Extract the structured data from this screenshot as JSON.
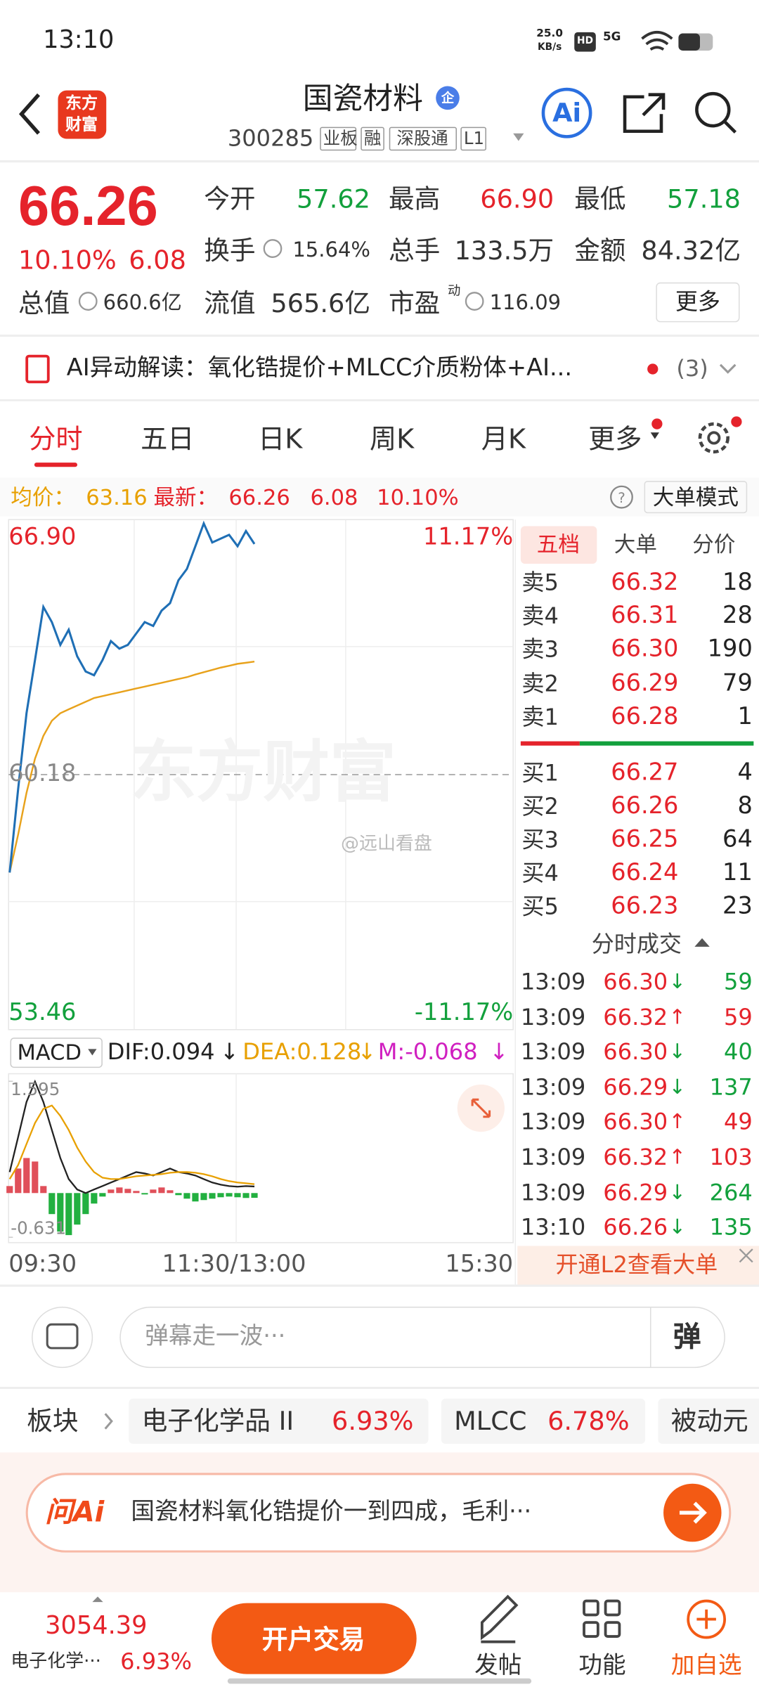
{
  "status_bar": {
    "time": "13:10",
    "speed": "25.0",
    "speed_unit": "KB/s",
    "hd": "HD",
    "network": "5G"
  },
  "header": {
    "logo": [
      "东方",
      "财富"
    ],
    "name": "国瓷材料",
    "badge": "企",
    "code": "300285",
    "tags": [
      "业板",
      "融",
      "深股通",
      "L1"
    ],
    "ai": "Ai"
  },
  "quote": {
    "price": "66.26",
    "change_pct": "10.10%",
    "change": "6.08",
    "fields": [
      {
        "label": "今开",
        "value": "57.62",
        "color": "#12a03c"
      },
      {
        "label": "最高",
        "value": "66.90",
        "color": "#e5232b"
      },
      {
        "label": "最低",
        "value": "57.18",
        "color": "#12a03c"
      },
      {
        "label": "换手",
        "value": "15.64%",
        "color": "#333333"
      },
      {
        "label": "总手",
        "value": "133.5万",
        "color": "#333333"
      },
      {
        "label": "金额",
        "value": "84.32亿",
        "color": "#333333"
      },
      {
        "label": "总值",
        "value": "660.6亿",
        "color": "#333333"
      },
      {
        "label": "流值",
        "value": "565.6亿",
        "color": "#333333"
      },
      {
        "label": "市盈",
        "value": "116.09",
        "color": "#333333"
      }
    ],
    "pe_sup": "动",
    "more_button": "更多"
  },
  "ai_banner": {
    "text": "AI异动解读：氧化锆提价+MLCC介质粉体+AI...",
    "count": "(3)"
  },
  "tabs": [
    "分时",
    "五日",
    "日K",
    "周K",
    "月K",
    "更多"
  ],
  "info_line": {
    "avg_label": "均价：",
    "avg": "63.16",
    "latest_label": "最新：",
    "latest": "66.26",
    "change": "6.08",
    "pct": "10.10%",
    "mode": "大单模式"
  },
  "chart": {
    "type": "line",
    "ylim": [
      53.46,
      66.9
    ],
    "yticks": [
      {
        "value": 66.9,
        "label": "66.90"
      },
      60.18,
      53.46
    ],
    "y2lim": [
      -11.17,
      11.17
    ],
    "y2ticks": [
      {
        "value": 11.17,
        "label": "11.17%"
      },
      {
        "value": -11.17,
        "label": "-11.17%"
      }
    ],
    "price_color": "#1f6fb5",
    "avg_color": "#e8a21c",
    "price": [
      57.6,
      59.8,
      61.8,
      63.2,
      64.6,
      64.2,
      63.6,
      64.0,
      63.3,
      62.9,
      62.8,
      63.2,
      63.7,
      63.5,
      63.6,
      63.9,
      64.2,
      64.1,
      64.5,
      64.7,
      65.3,
      65.6,
      66.2,
      66.8,
      66.3,
      66.4,
      66.5,
      66.2,
      66.6,
      66.26
    ],
    "avg": [
      57.6,
      58.6,
      59.7,
      60.6,
      61.2,
      61.6,
      61.8,
      61.9,
      62.0,
      62.1,
      62.2,
      62.25,
      62.3,
      62.35,
      62.4,
      62.45,
      62.5,
      62.55,
      62.6,
      62.65,
      62.7,
      62.75,
      62.82,
      62.88,
      62.94,
      63.0,
      63.05,
      63.1,
      63.13,
      63.16
    ],
    "x_labels": [
      "09:30",
      "11:30/13:00",
      "15:30"
    ],
    "watermark": "东方财富",
    "credit": "@远山看盘"
  },
  "macd": {
    "title": "MACD",
    "dif_label": "DIF:0.094",
    "dea_label": "DEA:0.128",
    "m_label": "M:-0.068",
    "arrows": [
      "↓",
      "↓",
      "↓"
    ],
    "ylim": [
      -0.631,
      1.595
    ],
    "yticks": [
      1.595,
      -0.631
    ],
    "dif": [
      0.3,
      0.8,
      1.3,
      1.59,
      1.3,
      0.9,
      0.5,
      0.2,
      0.05,
      0.0,
      0.05,
      0.1,
      0.15,
      0.2,
      0.25,
      0.3,
      0.28,
      0.25,
      0.3,
      0.35,
      0.3,
      0.28,
      0.25,
      0.2,
      0.15,
      0.12,
      0.1,
      0.09,
      0.1,
      0.094
    ],
    "dea": [
      0.2,
      0.4,
      0.7,
      1.0,
      1.2,
      1.25,
      1.1,
      0.9,
      0.65,
      0.45,
      0.3,
      0.22,
      0.2,
      0.2,
      0.22,
      0.24,
      0.25,
      0.26,
      0.27,
      0.29,
      0.3,
      0.3,
      0.29,
      0.27,
      0.24,
      0.2,
      0.17,
      0.15,
      0.14,
      0.128
    ],
    "m": [
      0.1,
      0.35,
      0.5,
      0.45,
      0.1,
      -0.3,
      -0.55,
      -0.6,
      -0.45,
      -0.3,
      -0.15,
      -0.05,
      0.05,
      0.08,
      0.06,
      0.03,
      -0.02,
      0.05,
      0.08,
      0.04,
      -0.03,
      -0.08,
      -0.12,
      -0.1,
      -0.08,
      -0.06,
      -0.05,
      -0.06,
      -0.07,
      -0.068
    ]
  },
  "order_book": {
    "tabs": [
      "五档",
      "大单",
      "分价"
    ],
    "sells": [
      [
        "卖5",
        "66.32",
        "18"
      ],
      [
        "卖4",
        "66.31",
        "28"
      ],
      [
        "卖3",
        "66.30",
        "190"
      ],
      [
        "卖2",
        "66.29",
        "79"
      ],
      [
        "卖1",
        "66.28",
        "1"
      ]
    ],
    "buys": [
      [
        "买1",
        "66.27",
        "4"
      ],
      [
        "买2",
        "66.26",
        "8"
      ],
      [
        "买3",
        "66.25",
        "64"
      ],
      [
        "买4",
        "66.24",
        "11"
      ],
      [
        "买5",
        "66.23",
        "23"
      ]
    ]
  },
  "trades": {
    "title": "分时成交",
    "rows": [
      [
        "13:09",
        "66.30",
        "↓",
        "59"
      ],
      [
        "13:09",
        "66.32",
        "↑",
        "59"
      ],
      [
        "13:09",
        "66.30",
        "↓",
        "40"
      ],
      [
        "13:09",
        "66.29",
        "↓",
        "137"
      ],
      [
        "13:09",
        "66.30",
        "↑",
        "49"
      ],
      [
        "13:09",
        "66.32",
        "↑",
        "103"
      ],
      [
        "13:09",
        "66.29",
        "↓",
        "264"
      ],
      [
        "13:10",
        "66.26",
        "↓",
        "135"
      ]
    ],
    "l2_banner": "开通L2查看大单"
  },
  "comment": {
    "placeholder": "弹幕走一波···",
    "button": "弹"
  },
  "sectors": {
    "label": "板块",
    "items": [
      {
        "name": "电子化学品 II",
        "pct": "6.93%"
      },
      {
        "name": "MLCC",
        "pct": "6.78%"
      },
      {
        "name": "被动元"
      }
    ]
  },
  "ask_ai": {
    "logo": "问Ai",
    "text": "国瓷材料氧化锆提价一到四成，毛利···"
  },
  "bottom_nav": {
    "index_value": "3054.39",
    "index_name": "电子化学···",
    "index_pct": "6.93%",
    "trade": "开户交易",
    "items": [
      "发帖",
      "功能",
      "加自选"
    ]
  }
}
